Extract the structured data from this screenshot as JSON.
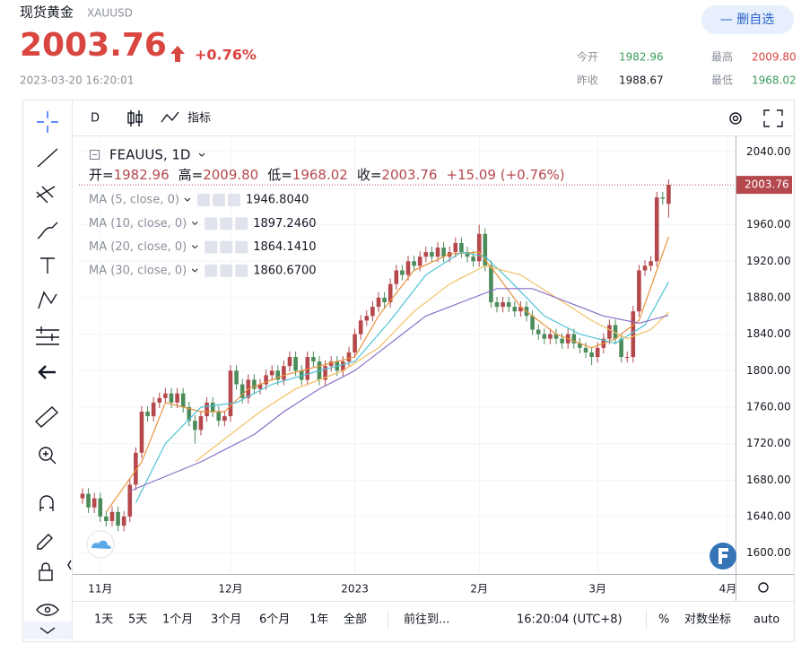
{
  "header": {
    "name": "现货黄金",
    "symbol": "XAUUSD",
    "price": "2003.76",
    "change": "+0.76%",
    "time": "2023-03-20 16:20:01",
    "button": "— 删自选",
    "stats": [
      {
        "label": "今开",
        "value": "1982.96"
      },
      {
        "label": "最高",
        "value": "2009.80"
      },
      {
        "label": "昨收",
        "value": "1988.67"
      },
      {
        "label": "最低",
        "value": "1968.02"
      }
    ]
  },
  "toolbar": {
    "interval": "D",
    "indicators": "指标"
  },
  "chart_data": {
    "type": "candlestick",
    "symbol_label": "FEAUUS, 1D",
    "ohlc_label": [
      {
        "label": "开=",
        "value": "1982.96"
      },
      {
        "label": "高=",
        "value": "2009.80"
      },
      {
        "label": "低=",
        "value": "1968.02"
      },
      {
        "label": "收=",
        "value": "2003.76"
      }
    ],
    "change_label": "+15.09 (+0.76%)",
    "up_color": "#b5484c",
    "down_color": "#4c8c5b",
    "ohlc": [
      [
        1660,
        1671,
        1654,
        1665
      ],
      [
        1665,
        1671,
        1644,
        1650
      ],
      [
        1650,
        1666,
        1644,
        1660
      ],
      [
        1660,
        1666,
        1634,
        1640
      ],
      [
        1640,
        1646,
        1629,
        1635
      ],
      [
        1635,
        1651,
        1629,
        1645
      ],
      [
        1645,
        1651,
        1624,
        1630
      ],
      [
        1630,
        1646,
        1624,
        1640
      ],
      [
        1640,
        1681,
        1634,
        1675
      ],
      [
        1675,
        1716,
        1669,
        1710
      ],
      [
        1710,
        1761,
        1704,
        1755
      ],
      [
        1755,
        1761,
        1744,
        1750
      ],
      [
        1750,
        1771,
        1744,
        1765
      ],
      [
        1765,
        1776,
        1759,
        1770
      ],
      [
        1770,
        1781,
        1764,
        1775
      ],
      [
        1775,
        1781,
        1759,
        1765
      ],
      [
        1765,
        1781,
        1759,
        1775
      ],
      [
        1775,
        1781,
        1754,
        1760
      ],
      [
        1760,
        1766,
        1739,
        1745
      ],
      [
        1745,
        1751,
        1720,
        1735
      ],
      [
        1735,
        1756,
        1729,
        1750
      ],
      [
        1750,
        1771,
        1744,
        1765
      ],
      [
        1765,
        1771,
        1749,
        1755
      ],
      [
        1755,
        1761,
        1739,
        1745
      ],
      [
        1745,
        1756,
        1739,
        1750
      ],
      [
        1750,
        1806,
        1744,
        1800
      ],
      [
        1800,
        1806,
        1779,
        1785
      ],
      [
        1785,
        1791,
        1764,
        1770
      ],
      [
        1770,
        1796,
        1764,
        1790
      ],
      [
        1790,
        1796,
        1774,
        1780
      ],
      [
        1780,
        1791,
        1774,
        1785
      ],
      [
        1785,
        1801,
        1779,
        1795
      ],
      [
        1795,
        1806,
        1789,
        1800
      ],
      [
        1800,
        1806,
        1784,
        1790
      ],
      [
        1790,
        1811,
        1784,
        1805
      ],
      [
        1805,
        1821,
        1799,
        1815
      ],
      [
        1815,
        1821,
        1794,
        1800
      ],
      [
        1800,
        1806,
        1784,
        1790
      ],
      [
        1790,
        1821,
        1784,
        1815
      ],
      [
        1815,
        1821,
        1804,
        1810
      ],
      [
        1810,
        1816,
        1784,
        1790
      ],
      [
        1790,
        1811,
        1784,
        1805
      ],
      [
        1805,
        1816,
        1799,
        1810
      ],
      [
        1810,
        1816,
        1794,
        1800
      ],
      [
        1800,
        1816,
        1794,
        1810
      ],
      [
        1810,
        1826,
        1804,
        1820
      ],
      [
        1820,
        1846,
        1814,
        1840
      ],
      [
        1840,
        1861,
        1834,
        1855
      ],
      [
        1855,
        1866,
        1849,
        1860
      ],
      [
        1860,
        1876,
        1854,
        1870
      ],
      [
        1870,
        1886,
        1864,
        1880
      ],
      [
        1880,
        1886,
        1869,
        1875
      ],
      [
        1875,
        1901,
        1869,
        1895
      ],
      [
        1895,
        1916,
        1889,
        1910
      ],
      [
        1910,
        1916,
        1899,
        1905
      ],
      [
        1905,
        1926,
        1899,
        1920
      ],
      [
        1920,
        1926,
        1909,
        1915
      ],
      [
        1915,
        1931,
        1909,
        1925
      ],
      [
        1925,
        1936,
        1919,
        1930
      ],
      [
        1930,
        1936,
        1919,
        1925
      ],
      [
        1925,
        1941,
        1919,
        1935
      ],
      [
        1935,
        1941,
        1919,
        1925
      ],
      [
        1925,
        1936,
        1919,
        1930
      ],
      [
        1930,
        1946,
        1924,
        1940
      ],
      [
        1940,
        1946,
        1924,
        1930
      ],
      [
        1930,
        1936,
        1919,
        1925
      ],
      [
        1925,
        1931,
        1914,
        1920
      ],
      [
        1920,
        1960,
        1914,
        1950
      ],
      [
        1950,
        1956,
        1909,
        1915
      ],
      [
        1915,
        1921,
        1869,
        1875
      ],
      [
        1875,
        1881,
        1864,
        1870
      ],
      [
        1870,
        1881,
        1864,
        1875
      ],
      [
        1875,
        1881,
        1864,
        1870
      ],
      [
        1870,
        1876,
        1859,
        1865
      ],
      [
        1865,
        1876,
        1859,
        1870
      ],
      [
        1870,
        1876,
        1854,
        1860
      ],
      [
        1860,
        1866,
        1839,
        1845
      ],
      [
        1845,
        1851,
        1834,
        1840
      ],
      [
        1840,
        1846,
        1829,
        1835
      ],
      [
        1835,
        1846,
        1829,
        1840
      ],
      [
        1840,
        1846,
        1829,
        1835
      ],
      [
        1835,
        1841,
        1824,
        1830
      ],
      [
        1830,
        1846,
        1824,
        1840
      ],
      [
        1840,
        1846,
        1824,
        1830
      ],
      [
        1830,
        1836,
        1819,
        1825
      ],
      [
        1825,
        1831,
        1814,
        1820
      ],
      [
        1820,
        1826,
        1806,
        1815
      ],
      [
        1815,
        1831,
        1809,
        1825
      ],
      [
        1825,
        1841,
        1819,
        1835
      ],
      [
        1835,
        1856,
        1829,
        1850
      ],
      [
        1850,
        1856,
        1829,
        1835
      ],
      [
        1835,
        1841,
        1809,
        1815
      ],
      [
        1815,
        1821,
        1809,
        1815
      ],
      [
        1815,
        1871,
        1809,
        1865
      ],
      [
        1865,
        1916,
        1859,
        1910
      ],
      [
        1910,
        1921,
        1904,
        1915
      ],
      [
        1915,
        1926,
        1909,
        1920
      ],
      [
        1920,
        1996,
        1914,
        1990
      ],
      [
        1990,
        1996,
        1982,
        1988.67
      ],
      [
        1982.96,
        2009.8,
        1968.02,
        2003.76
      ]
    ],
    "ma": [
      {
        "name": "MA (5, close, 0)",
        "color": "#e8913a",
        "value_label": "1946.8040",
        "x": [
          4,
          10,
          14,
          20,
          24,
          28,
          34,
          40,
          46,
          50,
          56,
          62,
          67,
          70,
          74,
          80,
          86,
          90,
          94,
          97,
          99
        ],
        "values": [
          1645,
          1700,
          1765,
          1755,
          1755,
          1780,
          1795,
          1805,
          1815,
          1860,
          1910,
          1928,
          1930,
          1905,
          1870,
          1840,
          1825,
          1835,
          1855,
          1910,
          1946.804
        ]
      },
      {
        "name": "MA (10, close, 0)",
        "color": "#4fc3d6",
        "value_label": "1897.2460",
        "x": [
          9,
          14,
          20,
          26,
          32,
          40,
          46,
          52,
          58,
          64,
          68,
          72,
          78,
          84,
          90,
          95,
          99
        ],
        "values": [
          1655,
          1720,
          1760,
          1765,
          1785,
          1800,
          1810,
          1855,
          1905,
          1930,
          1925,
          1900,
          1860,
          1840,
          1830,
          1850,
          1897.246
        ]
      },
      {
        "name": "MA (20, close, 0)",
        "color": "#f2c063",
        "value_label": "1864.1410",
        "x": [
          19,
          24,
          30,
          36,
          44,
          50,
          56,
          62,
          68,
          74,
          80,
          86,
          92,
          96,
          99
        ],
        "values": [
          1700,
          1725,
          1755,
          1780,
          1800,
          1825,
          1865,
          1895,
          1915,
          1905,
          1880,
          1855,
          1835,
          1845,
          1864.141
        ]
      },
      {
        "name": "MA (30, close, 0)",
        "color": "#8a6dc8",
        "value_label": "1860.6700",
        "x": [
          8,
          20,
          29,
          34,
          40,
          46,
          52,
          58,
          64,
          70,
          76,
          82,
          88,
          94,
          99
        ],
        "values": [
          1668,
          1700,
          1730,
          1755,
          1780,
          1800,
          1830,
          1860,
          1875,
          1890,
          1890,
          1875,
          1860,
          1852,
          1860.67
        ]
      }
    ],
    "xlim": [
      -0.6,
      110.3
    ],
    "ylim": [
      1577,
      2057
    ],
    "yticks": [
      {
        "value": 1600,
        "label": "1600.00"
      },
      {
        "value": 1640,
        "label": "1640.00"
      },
      {
        "value": 1680,
        "label": "1680.00"
      },
      {
        "value": 1720,
        "label": "1720.00"
      },
      {
        "value": 1760,
        "label": "1760.00"
      },
      {
        "value": 1800,
        "label": "1800.00"
      },
      {
        "value": 1840,
        "label": "1840.00"
      },
      {
        "value": 1880,
        "label": "1880.00"
      },
      {
        "value": 1920,
        "label": "1920.00"
      },
      {
        "value": 1960,
        "label": "1960.00"
      },
      {
        "value": 2000,
        "label": "2000.00"
      },
      {
        "value": 2040,
        "label": "2040.00"
      }
    ],
    "xticks": [
      {
        "value": 3,
        "label": "11月"
      },
      {
        "value": 25,
        "label": "12月"
      },
      {
        "value": 46,
        "label": "2023"
      },
      {
        "value": 67,
        "label": "2月"
      },
      {
        "value": 87,
        "label": "3月"
      },
      {
        "value": 109,
        "label": "4月"
      }
    ],
    "grid": true
  },
  "bottom_bar": {
    "ranges": [
      "1天",
      "5天",
      "1个月",
      "3个月",
      "6个月",
      "1年",
      "全部"
    ],
    "goto": "前往到...",
    "clock": "16:20:04 (UTC+8)",
    "percent": "%",
    "log": "对数坐标",
    "auto": "auto"
  }
}
